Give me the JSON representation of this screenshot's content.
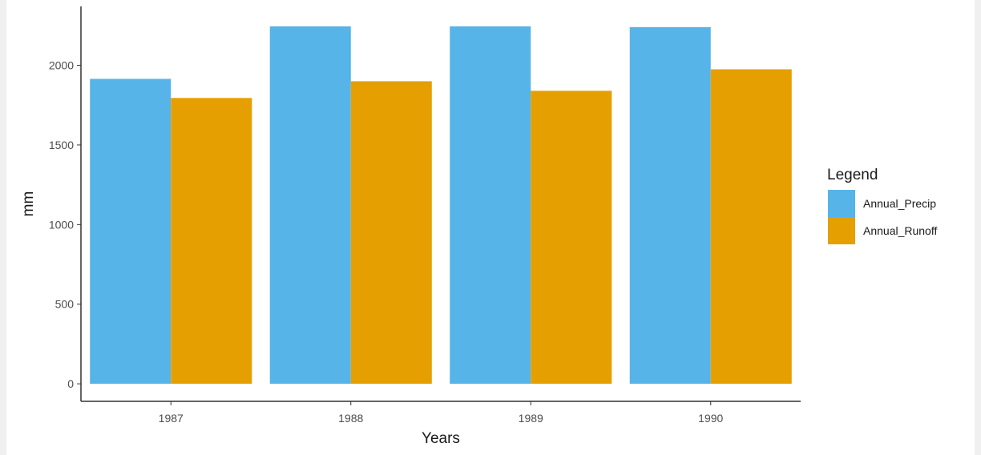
{
  "chart_data": {
    "type": "bar",
    "categories": [
      "1987",
      "1988",
      "1989",
      "1990"
    ],
    "series": [
      {
        "name": "Annual_Precip",
        "values": [
          1915,
          2245,
          2245,
          2240
        ],
        "color": "#56B4E9"
      },
      {
        "name": "Annual_Runoff",
        "values": [
          1795,
          1900,
          1840,
          1975
        ],
        "color": "#E69F00"
      }
    ],
    "xlabel": "Years",
    "ylabel": "mm",
    "yticks": [
      0,
      500,
      1000,
      1500,
      2000
    ],
    "ylim": [
      -110,
      2370
    ],
    "grid": false,
    "legend": {
      "title": "Legend",
      "placement": "right"
    }
  }
}
